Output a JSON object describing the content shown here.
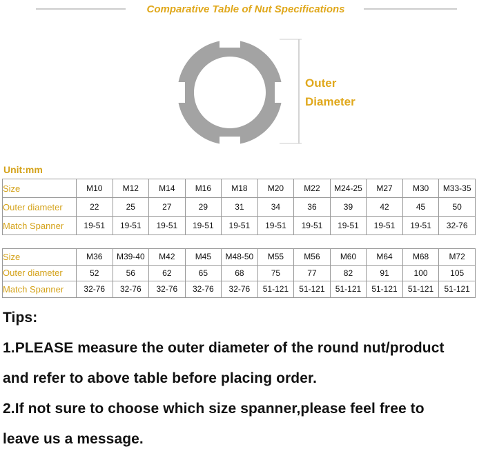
{
  "header": {
    "title": "Comparative Table of Nut Specifications"
  },
  "diagram": {
    "label_lines": [
      "Outer",
      "Diameter"
    ]
  },
  "unit": "Unit:mm",
  "tables": [
    {
      "rows": [
        [
          "Size",
          "M10",
          "M12",
          "M14",
          "M16",
          "M18",
          "M20",
          "M22",
          "M24-25",
          "M27",
          "M30",
          "M33-35"
        ],
        [
          "Outer diameter",
          "22",
          "25",
          "27",
          "29",
          "31",
          "34",
          "36",
          "39",
          "42",
          "45",
          "50"
        ],
        [
          "Match Spanner",
          "19-51",
          "19-51",
          "19-51",
          "19-51",
          "19-51",
          "19-51",
          "19-51",
          "19-51",
          "19-51",
          "19-51",
          "32-76"
        ]
      ]
    },
    {
      "rows": [
        [
          "Size",
          "M36",
          "M39-40",
          "M42",
          "M45",
          "M48-50",
          "M55",
          "M56",
          "M60",
          "M64",
          "M68",
          "M72"
        ],
        [
          "Outer diameter",
          "52",
          "56",
          "62",
          "65",
          "68",
          "75",
          "77",
          "82",
          "91",
          "100",
          "105"
        ],
        [
          "Match Spanner",
          "32-76",
          "32-76",
          "32-76",
          "32-76",
          "32-76",
          "51-121",
          "51-121",
          "51-121",
          "51-121",
          "51-121",
          "51-121"
        ]
      ]
    }
  ],
  "tips": {
    "heading": "Tips:",
    "lines": [
      "1.PLEASE measure the outer diameter of the round nut/product",
      "and refer to above table before placing order.",
      "2.If not sure to choose which size spanner,please feel free to",
      "leave us a message."
    ]
  }
}
